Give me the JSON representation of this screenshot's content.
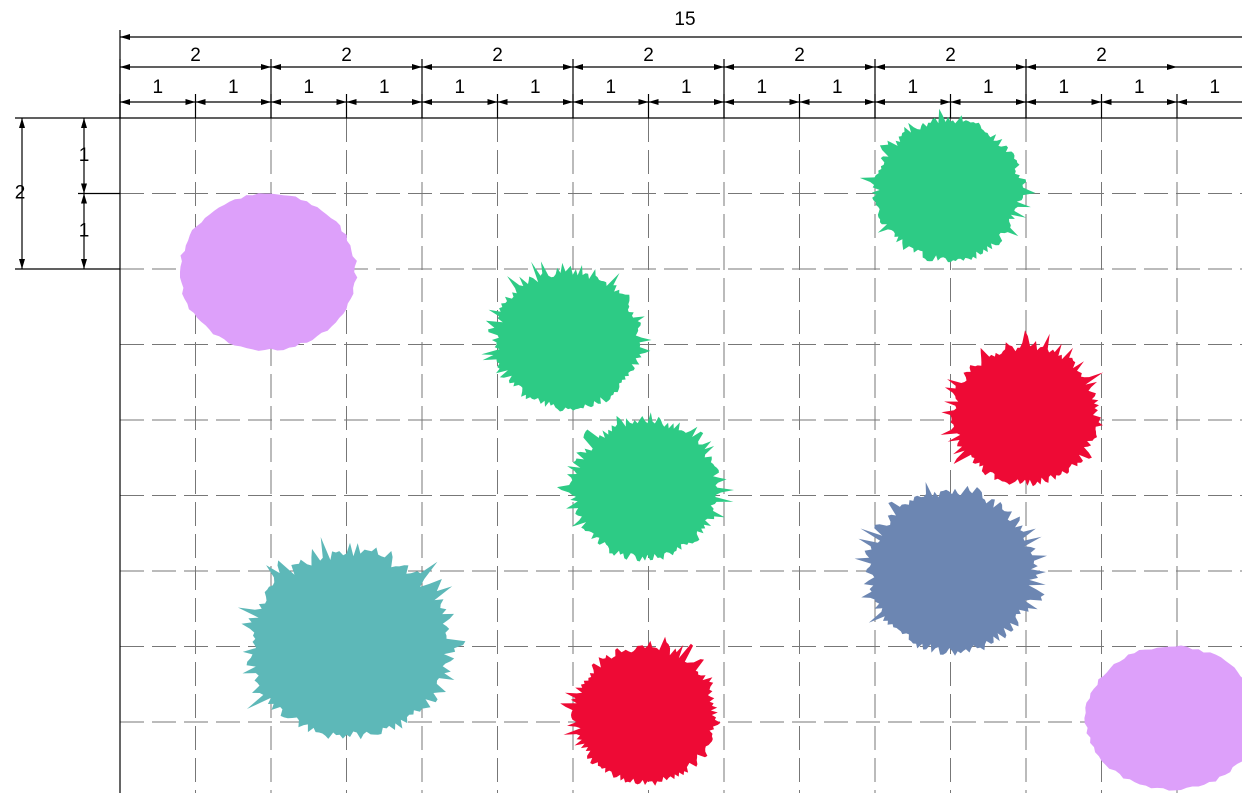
{
  "dimensions": {
    "total": "15",
    "pairs": [
      "2",
      "2",
      "2",
      "2",
      "2",
      "2",
      "2"
    ],
    "units": [
      "1",
      "1",
      "1",
      "1",
      "1",
      "1",
      "1",
      "1",
      "1",
      "1",
      "1",
      "1",
      "1",
      "1",
      "1"
    ],
    "left_total": "2",
    "left_units": [
      "1",
      "1"
    ]
  }
}
